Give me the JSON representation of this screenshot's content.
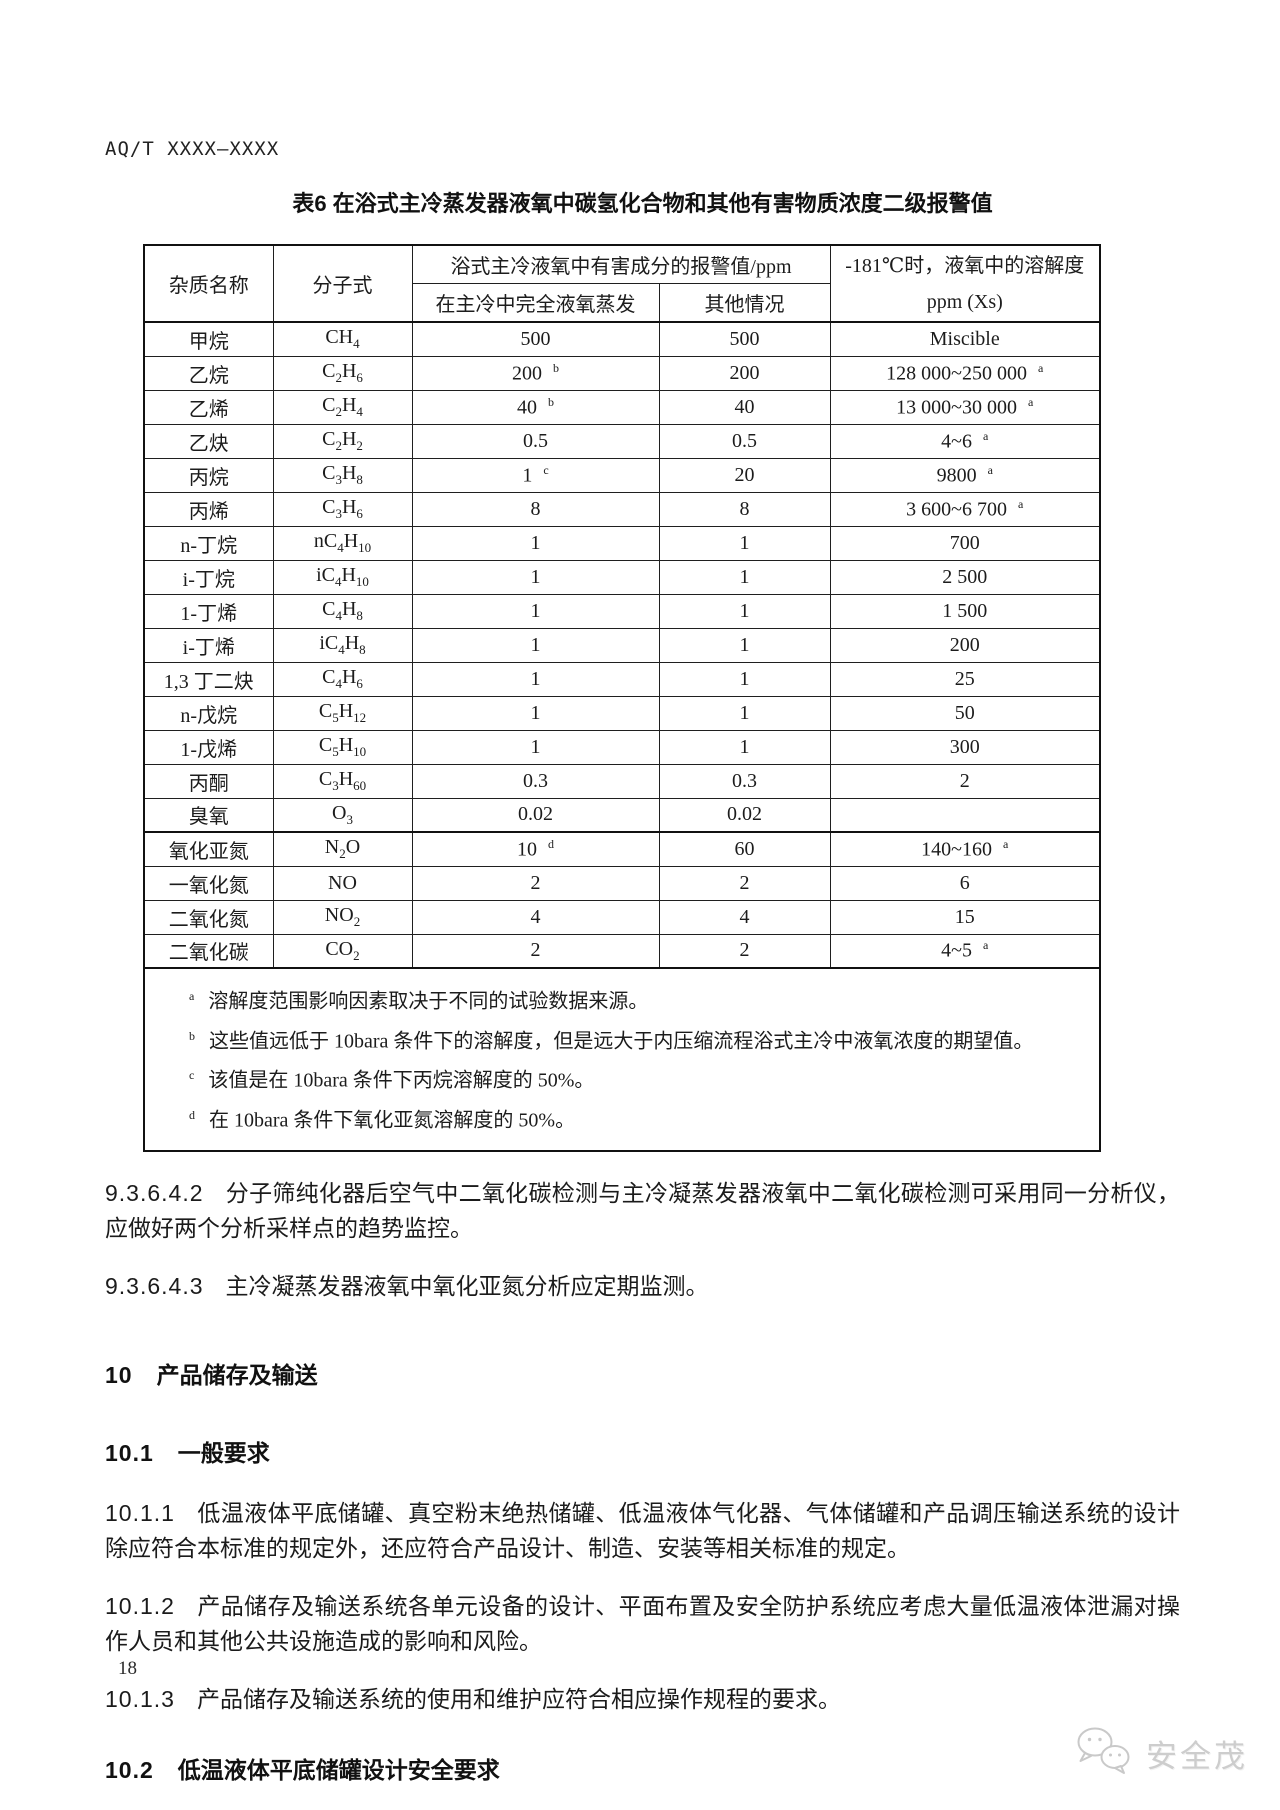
{
  "header": {
    "doc_number": "AQ/T XXXX—XXXX"
  },
  "table": {
    "title": "表6  在浴式主冷蒸发器液氧中碳氢化合物和其他有害物质浓度二级报警值",
    "columns": {
      "impurity": "杂质名称",
      "formula": "分子式",
      "alarm_group": "浴式主冷液氧中有害成分的报警值/ppm",
      "alarm_full_evap": "在主冷中完全液氧蒸发",
      "alarm_other": "其他情况",
      "solubility_line1": "-181℃时，液氧中的溶解度",
      "solubility_line2": "ppm (Xs)"
    },
    "rows": [
      {
        "name": "甲烷",
        "formula": "CH4",
        "full": "500",
        "full_sup": "",
        "other": "500",
        "other_sup": "",
        "sol": "Miscible",
        "sol_sup": "",
        "thick_top": false
      },
      {
        "name": "乙烷",
        "formula": "C2H6",
        "full": "200",
        "full_sup": "b",
        "other": "200",
        "other_sup": "",
        "sol": "128 000~250 000",
        "sol_sup": "a",
        "thick_top": false
      },
      {
        "name": "乙烯",
        "formula": "C2H4",
        "full": "40",
        "full_sup": "b",
        "other": "40",
        "other_sup": "",
        "sol": "13 000~30 000",
        "sol_sup": "a",
        "thick_top": false
      },
      {
        "name": "乙炔",
        "formula": "C2H2",
        "full": "0.5",
        "full_sup": "",
        "other": "0.5",
        "other_sup": "",
        "sol": "4~6",
        "sol_sup": "a",
        "thick_top": false
      },
      {
        "name": "丙烷",
        "formula": "C3H8",
        "full": "1",
        "full_sup": "c",
        "other": "20",
        "other_sup": "",
        "sol": "9800",
        "sol_sup": "a",
        "thick_top": false
      },
      {
        "name": "丙烯",
        "formula": "C3H6",
        "full": "8",
        "full_sup": "",
        "other": "8",
        "other_sup": "",
        "sol": "3 600~6 700",
        "sol_sup": "a",
        "thick_top": false
      },
      {
        "name": "n-丁烷",
        "formula": "nC4H10",
        "full": "1",
        "full_sup": "",
        "other": "1",
        "other_sup": "",
        "sol": "700",
        "sol_sup": "",
        "thick_top": false
      },
      {
        "name": "i-丁烷",
        "formula": "iC4H10",
        "full": "1",
        "full_sup": "",
        "other": "1",
        "other_sup": "",
        "sol": "2 500",
        "sol_sup": "",
        "thick_top": false
      },
      {
        "name": "1-丁烯",
        "formula": "C4H8",
        "full": "1",
        "full_sup": "",
        "other": "1",
        "other_sup": "",
        "sol": "1 500",
        "sol_sup": "",
        "thick_top": false
      },
      {
        "name": "i-丁烯",
        "formula": "iC4H8",
        "full": "1",
        "full_sup": "",
        "other": "1",
        "other_sup": "",
        "sol": "200",
        "sol_sup": "",
        "thick_top": false
      },
      {
        "name": "1,3 丁二炔",
        "formula": "C4H6",
        "full": "1",
        "full_sup": "",
        "other": "1",
        "other_sup": "",
        "sol": "25",
        "sol_sup": "",
        "thick_top": false
      },
      {
        "name": "n-戊烷",
        "formula": "C5H12",
        "full": "1",
        "full_sup": "",
        "other": "1",
        "other_sup": "",
        "sol": "50",
        "sol_sup": "",
        "thick_top": false
      },
      {
        "name": "1-戊烯",
        "formula": "C5H10",
        "full": "1",
        "full_sup": "",
        "other": "1",
        "other_sup": "",
        "sol": "300",
        "sol_sup": "",
        "thick_top": false
      },
      {
        "name": "丙酮",
        "formula": "C3H60",
        "full": "0.3",
        "full_sup": "",
        "other": "0.3",
        "other_sup": "",
        "sol": "2",
        "sol_sup": "",
        "thick_top": false
      },
      {
        "name": "臭氧",
        "formula": "O3",
        "full": "0.02",
        "full_sup": "",
        "other": "0.02",
        "other_sup": "",
        "sol": "",
        "sol_sup": "",
        "thick_top": false
      },
      {
        "name": "氧化亚氮",
        "formula": "N2O",
        "full": "10",
        "full_sup": "d",
        "other": "60",
        "other_sup": "",
        "sol": "140~160",
        "sol_sup": "a",
        "thick_top": true
      },
      {
        "name": "一氧化氮",
        "formula": "NO",
        "full": "2",
        "full_sup": "",
        "other": "2",
        "other_sup": "",
        "sol": "6",
        "sol_sup": "",
        "thick_top": false
      },
      {
        "name": "二氧化氮",
        "formula": "NO2",
        "full": "4",
        "full_sup": "",
        "other": "4",
        "other_sup": "",
        "sol": "15",
        "sol_sup": "",
        "thick_top": false
      },
      {
        "name": "二氧化碳",
        "formula": "CO2",
        "full": "2",
        "full_sup": "",
        "other": "2",
        "other_sup": "",
        "sol": "4~5",
        "sol_sup": "a",
        "thick_top": false
      }
    ],
    "footnotes": [
      {
        "mark": "a",
        "text": "溶解度范围影响因素取决于不同的试验数据来源。"
      },
      {
        "mark": "b",
        "text": "这些值远低于 10bara 条件下的溶解度，但是远大于内压缩流程浴式主冷中液氧浓度的期望值。"
      },
      {
        "mark": "c",
        "text": "该值是在 10bara 条件下丙烷溶解度的 50%。"
      },
      {
        "mark": "d",
        "text": "在 10bara 条件下氧化亚氮溶解度的 50%。"
      }
    ]
  },
  "sections": {
    "s9342": {
      "num": "9.3.6.4.2",
      "text": "分子筛纯化器后空气中二氧化碳检测与主冷凝蒸发器液氧中二氧化碳检测可采用同一分析仪，应做好两个分析采样点的趋势监控。"
    },
    "s9343": {
      "num": "9.3.6.4.3",
      "text": "主冷凝蒸发器液氧中氧化亚氮分析应定期监测。"
    },
    "h10": {
      "num": "10",
      "text": "产品储存及输送"
    },
    "h101": {
      "num": "10.1",
      "text": "一般要求"
    },
    "s1011": {
      "num": "10.1.1",
      "text": "低温液体平底储罐、真空粉末绝热储罐、低温液体气化器、气体储罐和产品调压输送系统的设计除应符合本标准的规定外，还应符合产品设计、制造、安装等相关标准的规定。"
    },
    "s1012": {
      "num": "10.1.2",
      "text": "产品储存及输送系统各单元设备的设计、平面布置及安全防护系统应考虑大量低温液体泄漏对操作人员和其他公共设施造成的影响和风险。"
    },
    "s1013": {
      "num": "10.1.3",
      "text": "产品储存及输送系统的使用和维护应符合相应操作规程的要求。"
    },
    "h102": {
      "num": "10.2",
      "text": "低温液体平底储罐设计安全要求"
    }
  },
  "footer": {
    "page_number": "18",
    "watermark_text": "安全茂",
    "watermark_icon": "chat-bubbles-logo"
  },
  "colors": {
    "text": "#1c1c1c",
    "border": "#111111",
    "watermark": "#cdcdcd",
    "background": "#ffffff"
  }
}
